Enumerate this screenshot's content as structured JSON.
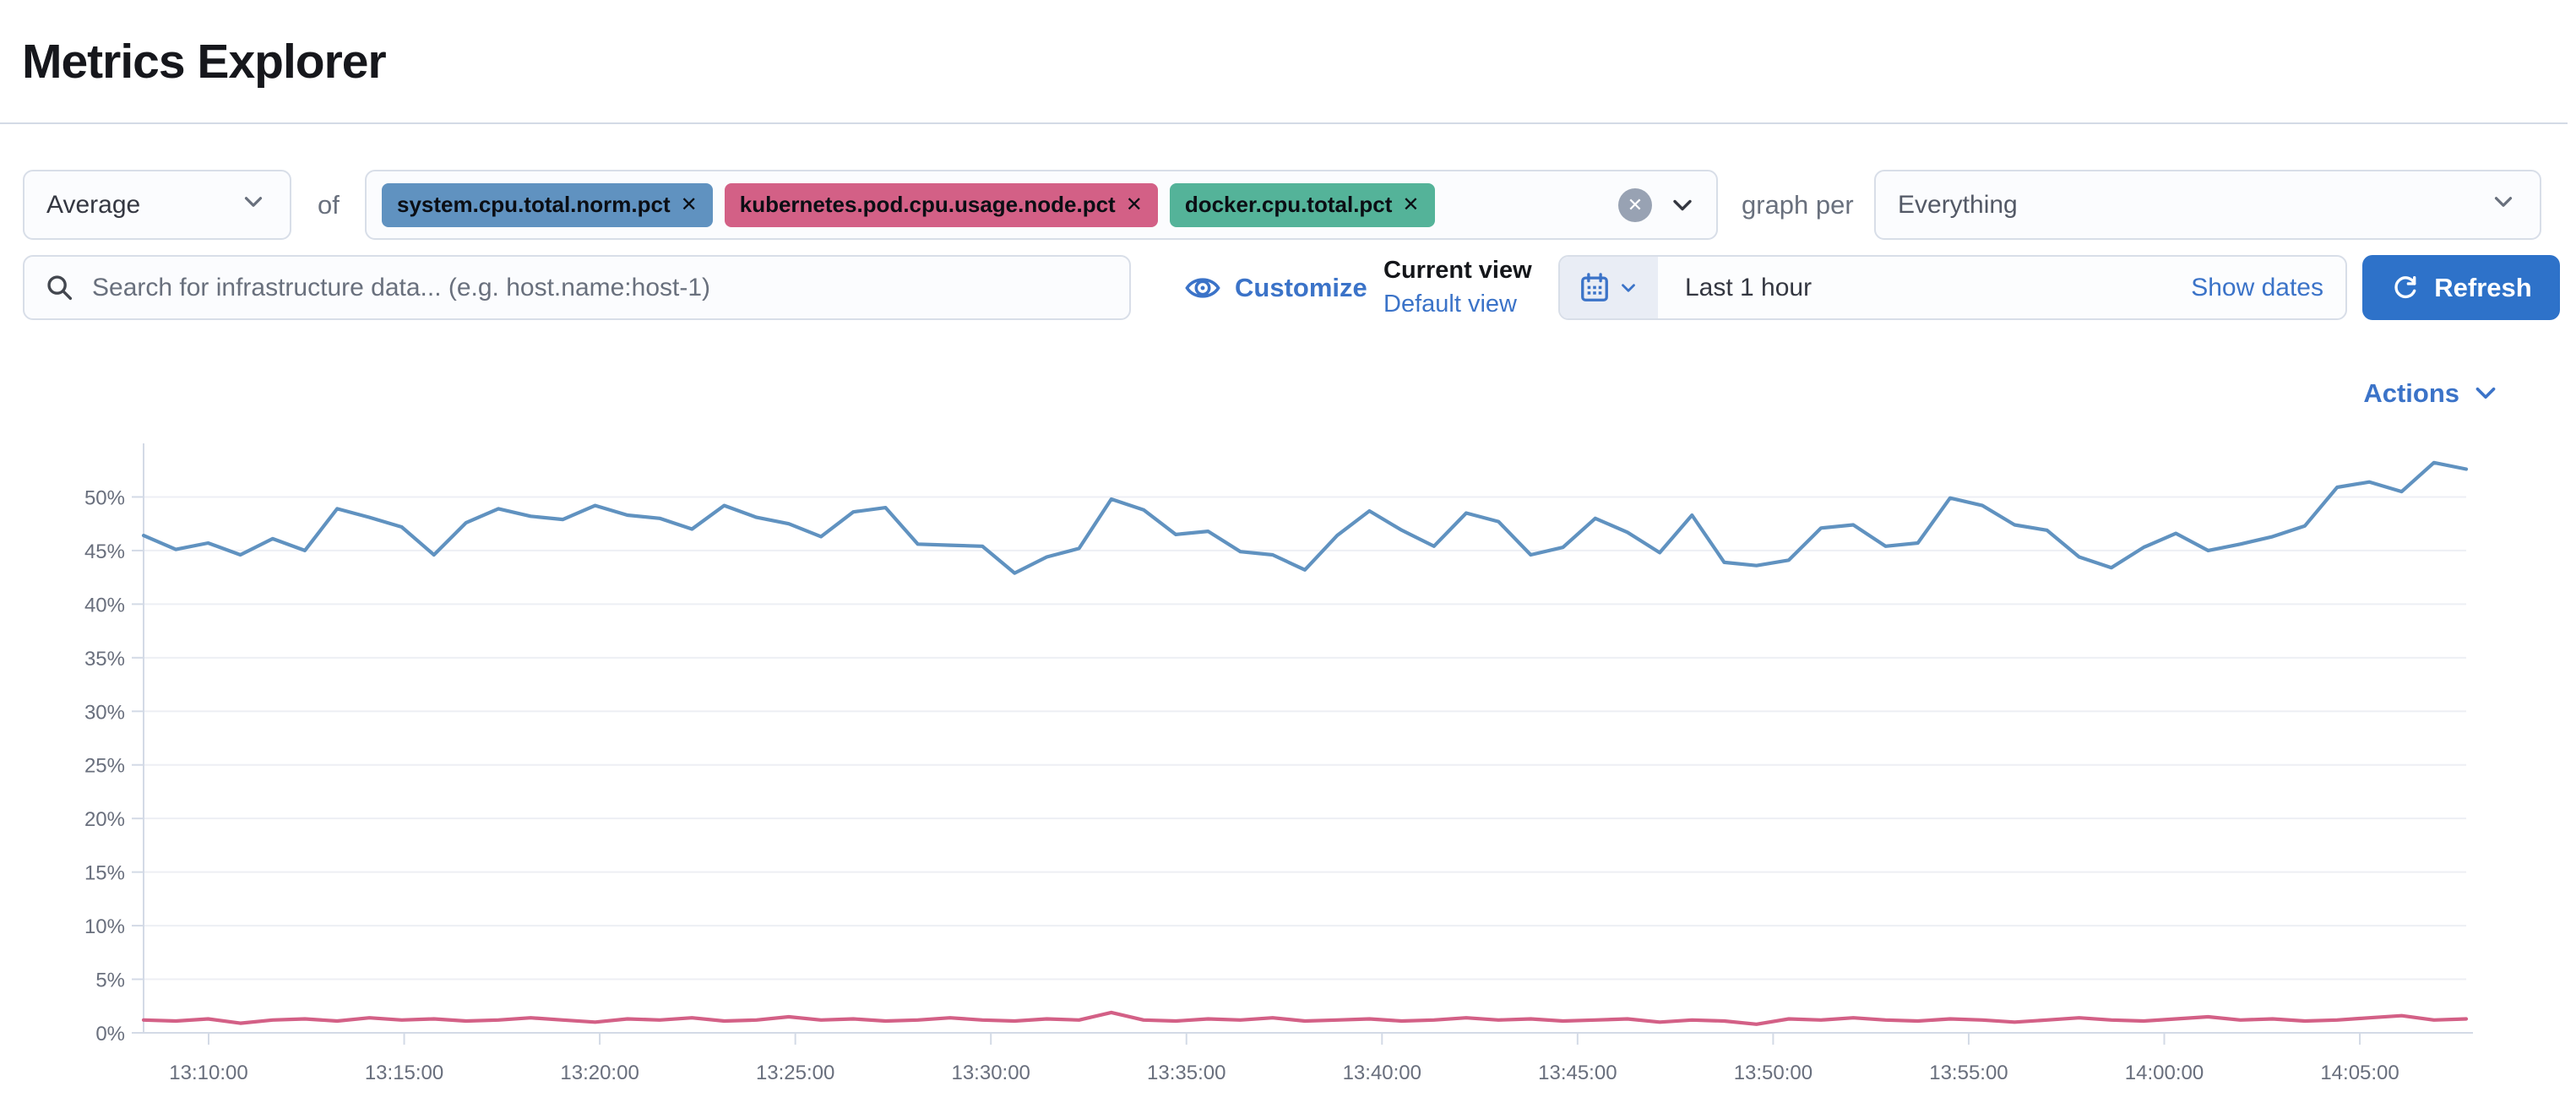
{
  "page_title": "Metrics Explorer",
  "toolbar": {
    "aggregation": {
      "value": "Average"
    },
    "of_label": "of",
    "metrics": [
      {
        "label": "system.cpu.total.norm.pct",
        "remove_label": "✕",
        "color": "#6092C0"
      },
      {
        "label": "kubernetes.pod.cpu.usage.node.pct",
        "remove_label": "✕",
        "color": "#D36086"
      },
      {
        "label": "docker.cpu.total.pct",
        "remove_label": "✕",
        "color": "#54B399"
      }
    ],
    "clear_all_label": "✕",
    "graph_per_label": "graph per",
    "group_by": {
      "value": "Everything"
    }
  },
  "search": {
    "placeholder": "Search for infrastructure data... (e.g. host.name:host-1)"
  },
  "view_controls": {
    "customize_label": "Customize",
    "current_view_label": "Current view",
    "view_name": "Default view"
  },
  "time_picker": {
    "range_label": "Last 1 hour",
    "show_dates_label": "Show dates",
    "refresh_label": "Refresh"
  },
  "actions": {
    "label": "Actions"
  },
  "colors": {
    "primary_blue": "#2E72C9",
    "link_blue": "#3B73C8",
    "series_blue": "#6092C0",
    "series_pink": "#D36086",
    "series_green": "#54B399",
    "border_gray": "#D3DAE6",
    "muted_text": "#69707D"
  },
  "chart_data": {
    "type": "line",
    "title": "",
    "xlabel": "",
    "ylabel": "",
    "ylim": [
      0,
      55
    ],
    "grid": "horizontal",
    "legend": "none",
    "y_axis": {
      "values": [
        0,
        5,
        10,
        15,
        20,
        25,
        30,
        35,
        40,
        45,
        50
      ],
      "labels": [
        "0%",
        "5%",
        "10%",
        "15%",
        "20%",
        "25%",
        "30%",
        "35%",
        "40%",
        "45%",
        "50%"
      ]
    },
    "x_axis": {
      "labels": [
        "13:10:00",
        "13:15:00",
        "13:20:00",
        "13:25:00",
        "13:30:00",
        "13:35:00",
        "13:40:00",
        "13:45:00",
        "13:50:00",
        "13:55:00",
        "14:00:00",
        "14:05:00"
      ],
      "first_frac": 0.028,
      "step_frac": 0.0842
    },
    "series": [
      {
        "name": "system.cpu.total.norm.pct (Average)",
        "color": "#6092C0",
        "values": [
          46.4,
          45.1,
          45.7,
          44.6,
          46.1,
          45.0,
          48.9,
          48.1,
          47.2,
          44.6,
          47.6,
          48.9,
          48.2,
          47.9,
          49.2,
          48.3,
          48.0,
          47.0,
          49.2,
          48.1,
          47.5,
          46.3,
          48.6,
          49.0,
          45.6,
          45.5,
          45.4,
          42.9,
          44.4,
          45.2,
          49.8,
          48.8,
          46.5,
          46.8,
          44.9,
          44.6,
          43.2,
          46.4,
          48.7,
          46.9,
          45.4,
          48.5,
          47.7,
          44.6,
          45.3,
          48.0,
          46.7,
          44.8,
          48.3,
          43.9,
          43.6,
          44.1,
          47.1,
          47.4,
          45.4,
          45.7,
          49.9,
          49.2,
          47.4,
          46.9,
          44.4,
          43.4,
          45.3,
          46.6,
          45.0,
          45.6,
          46.3,
          47.3,
          50.9,
          51.4,
          50.5,
          53.2,
          52.6
        ]
      },
      {
        "name": "kubernetes.pod.cpu.usage.node.pct (Average)",
        "color": "#D36086",
        "values": [
          1.2,
          1.1,
          1.3,
          0.9,
          1.2,
          1.3,
          1.1,
          1.4,
          1.2,
          1.3,
          1.1,
          1.2,
          1.4,
          1.2,
          1.0,
          1.3,
          1.2,
          1.4,
          1.1,
          1.2,
          1.5,
          1.2,
          1.3,
          1.1,
          1.2,
          1.4,
          1.2,
          1.1,
          1.3,
          1.2,
          1.9,
          1.2,
          1.1,
          1.3,
          1.2,
          1.4,
          1.1,
          1.2,
          1.3,
          1.1,
          1.2,
          1.4,
          1.2,
          1.3,
          1.1,
          1.2,
          1.3,
          1.0,
          1.2,
          1.1,
          0.8,
          1.3,
          1.2,
          1.4,
          1.2,
          1.1,
          1.3,
          1.2,
          1.0,
          1.2,
          1.4,
          1.2,
          1.1,
          1.3,
          1.5,
          1.2,
          1.3,
          1.1,
          1.2,
          1.4,
          1.6,
          1.2,
          1.3
        ]
      }
    ]
  }
}
